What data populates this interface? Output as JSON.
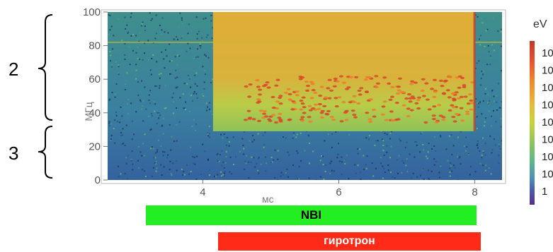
{
  "chart_data": {
    "type": "heatmap",
    "title": "",
    "xlabel": "мс",
    "ylabel": "МГц",
    "xlim": [
      2.6,
      8.4
    ],
    "ylim": [
      0,
      100
    ],
    "x_ticks": [
      "4",
      "6",
      "8"
    ],
    "y_ticks": [
      "0",
      "20",
      "40",
      "60",
      "80",
      "100"
    ],
    "colorbar": {
      "title": "eV",
      "labels": [
        "10",
        "10",
        "10",
        "10",
        "10",
        "10",
        "10",
        "10",
        "1"
      ],
      "colors": [
        "#c0392b",
        "#e8502e",
        "#f08a2c",
        "#e7b83a",
        "#c8d23e",
        "#8ec55a",
        "#5fb58a",
        "#4b8fb8",
        "#4a56a8",
        "#5b2a8c"
      ]
    },
    "regions": [
      {
        "label": "2",
        "y_range": [
          40,
          100
        ]
      },
      {
        "label": "3",
        "y_range": [
          2,
          28
        ]
      }
    ],
    "features": {
      "background_level_color": "#3c8bb0",
      "active_window_ms": [
        4.15,
        8.0
      ],
      "active_band_mhz": [
        29,
        100
      ],
      "active_color": "#d9ae3c",
      "mode_band_mhz": [
        34,
        62
      ],
      "mode_color": "#d8442a",
      "horizontal_line_mhz": 82
    },
    "timeline_bars": [
      {
        "label": "NBI",
        "start_ms": 3.15,
        "end_ms": 8.0,
        "color": "#22ee22"
      },
      {
        "label": "гиротрон",
        "start_ms": 4.2,
        "end_ms": 8.05,
        "color": "#ff2a17"
      }
    ]
  }
}
